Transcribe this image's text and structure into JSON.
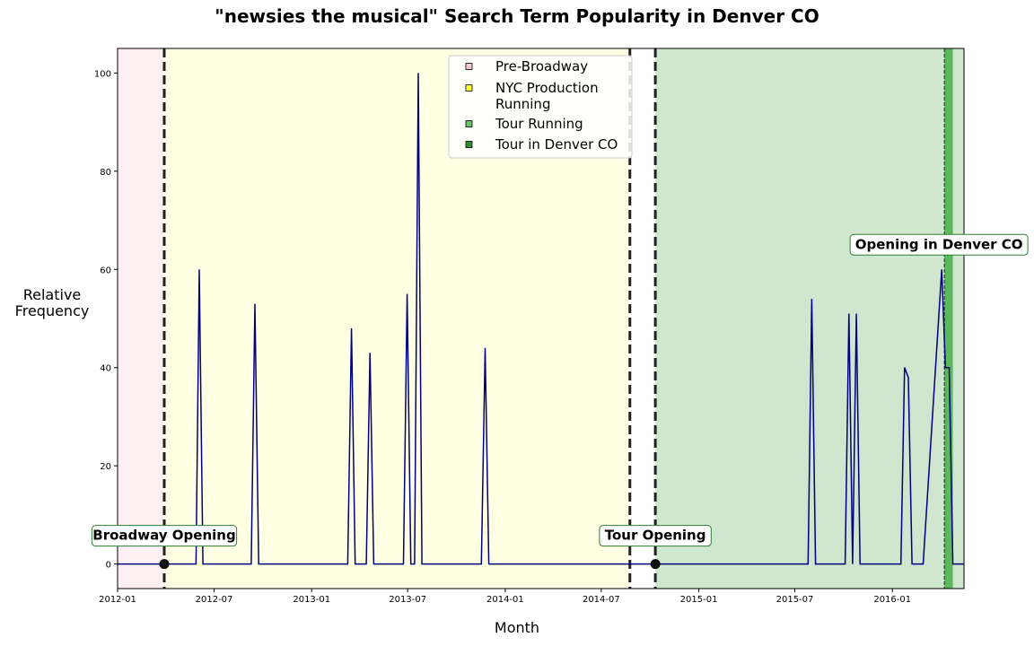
{
  "chart_data": {
    "type": "line",
    "title": "\"newsies the musical\" Search Term Popularity in Denver CO",
    "xlabel": "Month",
    "ylabel": "Relative\nFrequency",
    "xlim": [
      "2012-01-01",
      "2016-05-15"
    ],
    "ylim": [
      -5,
      105
    ],
    "x_ticks": [
      "2012-01",
      "2012-07",
      "2013-01",
      "2013-07",
      "2014-01",
      "2014-07",
      "2015-01",
      "2015-07",
      "2016-01"
    ],
    "y_ticks": [
      0,
      20,
      40,
      60,
      80,
      100
    ],
    "grid": false,
    "line_color": "#000080",
    "legend": {
      "placement": "top-center",
      "entries": [
        {
          "label": "Pre-Broadway",
          "color": "#f8c8d0"
        },
        {
          "label": "NYC Production\nRunning",
          "color": "#ffff33"
        },
        {
          "label": "Tour Running",
          "color": "#66c266"
        },
        {
          "label": "Tour in Denver CO",
          "color": "#2e8b2e"
        }
      ]
    },
    "regions": [
      {
        "label": "Pre-Broadway",
        "start": "2012-01-01",
        "end": "2012-03-29",
        "color": "#fdeff2"
      },
      {
        "label": "NYC Production Running",
        "start": "2012-03-29",
        "end": "2014-08-24",
        "color": "#ffffe3"
      },
      {
        "label": "Tour Running",
        "start": "2014-10-11",
        "end": "2016-05-15",
        "color": "#cfe6cf"
      },
      {
        "label": "Tour in Denver CO",
        "start": "2016-04-08",
        "end": "2016-04-24",
        "color": "#5cb85c"
      }
    ],
    "vlines": [
      {
        "x": "2012-03-29",
        "style": "dashed-thick"
      },
      {
        "x": "2014-08-24",
        "style": "dashed-thick"
      },
      {
        "x": "2014-10-11",
        "style": "dashed-thick"
      },
      {
        "x": "2016-04-08",
        "style": "dashed-thin"
      }
    ],
    "annotations": [
      {
        "text": "Broadway Opening",
        "x": "2012-03-29",
        "y": 0
      },
      {
        "text": "Tour Opening",
        "x": "2014-10-11",
        "y": 0
      },
      {
        "text": "Opening in Denver CO",
        "x": "2016-04-08",
        "y": 60
      }
    ],
    "series": [
      {
        "points": [
          [
            "2012-01-01",
            0
          ],
          [
            "2012-05-28",
            0
          ],
          [
            "2012-06-03",
            60
          ],
          [
            "2012-06-10",
            0
          ],
          [
            "2012-09-09",
            0
          ],
          [
            "2012-09-16",
            53
          ],
          [
            "2012-09-23",
            0
          ],
          [
            "2013-03-10",
            0
          ],
          [
            "2013-03-17",
            48
          ],
          [
            "2013-03-24",
            0
          ],
          [
            "2013-04-14",
            0
          ],
          [
            "2013-04-21",
            43
          ],
          [
            "2013-04-28",
            0
          ],
          [
            "2013-06-23",
            0
          ],
          [
            "2013-06-30",
            55
          ],
          [
            "2013-07-07",
            0
          ],
          [
            "2013-07-14",
            0
          ],
          [
            "2013-07-21",
            100
          ],
          [
            "2013-07-28",
            0
          ],
          [
            "2013-11-17",
            0
          ],
          [
            "2013-11-24",
            44
          ],
          [
            "2013-12-01",
            0
          ],
          [
            "2015-07-26",
            0
          ],
          [
            "2015-08-02",
            54
          ],
          [
            "2015-08-09",
            0
          ],
          [
            "2015-10-04",
            0
          ],
          [
            "2015-10-11",
            51
          ],
          [
            "2015-10-18",
            0
          ],
          [
            "2015-10-25",
            51
          ],
          [
            "2015-11-01",
            0
          ],
          [
            "2016-01-17",
            0
          ],
          [
            "2016-01-24",
            40
          ],
          [
            "2016-01-31",
            38
          ],
          [
            "2016-02-07",
            0
          ],
          [
            "2016-02-28",
            0
          ],
          [
            "2016-04-03",
            60
          ],
          [
            "2016-04-10",
            40
          ],
          [
            "2016-04-17",
            40
          ],
          [
            "2016-04-24",
            0
          ],
          [
            "2016-05-15",
            0
          ]
        ]
      }
    ]
  }
}
